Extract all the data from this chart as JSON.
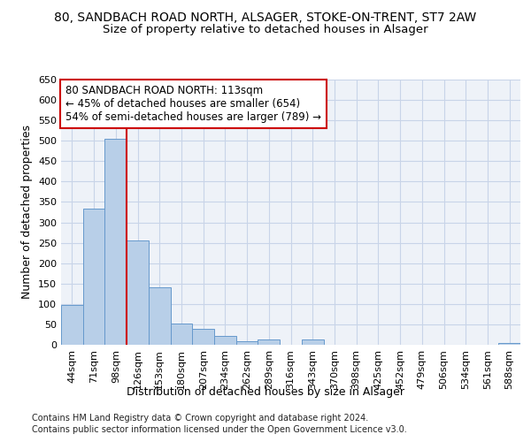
{
  "title_line1": "80, SANDBACH ROAD NORTH, ALSAGER, STOKE-ON-TRENT, ST7 2AW",
  "title_line2": "Size of property relative to detached houses in Alsager",
  "xlabel": "Distribution of detached houses by size in Alsager",
  "ylabel": "Number of detached properties",
  "categories": [
    "44sqm",
    "71sqm",
    "98sqm",
    "126sqm",
    "153sqm",
    "180sqm",
    "207sqm",
    "234sqm",
    "262sqm",
    "289sqm",
    "316sqm",
    "343sqm",
    "370sqm",
    "398sqm",
    "425sqm",
    "452sqm",
    "479sqm",
    "506sqm",
    "534sqm",
    "561sqm",
    "588sqm"
  ],
  "values": [
    97,
    333,
    505,
    255,
    140,
    53,
    40,
    22,
    8,
    12,
    0,
    12,
    0,
    0,
    0,
    0,
    0,
    0,
    0,
    0,
    5
  ],
  "bar_color": "#b8cfe8",
  "bar_edge_color": "#6699cc",
  "vline_x": 2.5,
  "vline_color": "#cc0000",
  "annotation_text": "80 SANDBACH ROAD NORTH: 113sqm\n← 45% of detached houses are smaller (654)\n54% of semi-detached houses are larger (789) →",
  "annotation_box_color": "#ffffff",
  "annotation_box_edge": "#cc0000",
  "ylim": [
    0,
    650
  ],
  "yticks": [
    0,
    50,
    100,
    150,
    200,
    250,
    300,
    350,
    400,
    450,
    500,
    550,
    600,
    650
  ],
  "grid_color": "#c8d4e8",
  "bg_color": "#eef2f8",
  "footer_line1": "Contains HM Land Registry data © Crown copyright and database right 2024.",
  "footer_line2": "Contains public sector information licensed under the Open Government Licence v3.0.",
  "title_fontsize": 10,
  "subtitle_fontsize": 9.5,
  "axis_label_fontsize": 9,
  "tick_fontsize": 8,
  "annotation_fontsize": 8.5
}
